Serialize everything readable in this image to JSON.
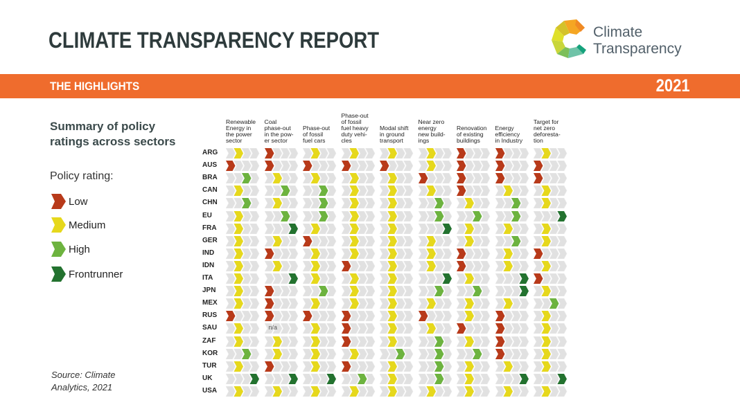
{
  "header": {
    "title": "CLIMATE TRANSPARENCY REPORT",
    "logo_text_line1": "Climate",
    "logo_text_line2": "Transparency",
    "band_label": "THE HIGHLIGHTS",
    "year": "2021"
  },
  "side": {
    "summary_title_line1": "Summary of policy",
    "summary_title_line2": "ratings across sectors",
    "legend_title": "Policy rating:",
    "legend": [
      {
        "label": "Low",
        "level": 1,
        "color": "#b83a1a"
      },
      {
        "label": "Medium",
        "level": 2,
        "color": "#e6d81c"
      },
      {
        "label": "High",
        "level": 3,
        "color": "#6db33f"
      },
      {
        "label": "Frontrunner",
        "level": 4,
        "color": "#23722f"
      }
    ],
    "source_line1": "Source: Climate",
    "source_line2": "Analytics, 2021"
  },
  "chart_data": {
    "type": "table",
    "title": "Summary of policy ratings across sectors",
    "rating_scale": [
      "Low",
      "Medium",
      "High",
      "Frontrunner"
    ],
    "colors": {
      "Low": "#b83a1a",
      "Medium": "#e6d81c",
      "High": "#6db33f",
      "Frontrunner": "#23722f",
      "track": "#e1e1e1"
    },
    "columns": [
      [
        "Renewable",
        "Energy in",
        "the power",
        "sector"
      ],
      [
        "Coal",
        "phase-out",
        "in the pow-",
        "er sector"
      ],
      [
        "Phase-out",
        "of fossil",
        "fuel cars"
      ],
      [
        "Phase-out",
        "of fossil",
        "fuel heavy",
        "duty vehi-",
        "cles"
      ],
      [
        "Modal shift",
        "in ground",
        "transport"
      ],
      [
        "Near zero",
        "energy",
        "new build-",
        "ings"
      ],
      [
        "Renovation",
        "of existing",
        "buildings"
      ],
      [
        "Energy",
        "efficiency",
        "in Industry"
      ],
      [
        "Target for",
        "net zero",
        "deforesta-",
        "tion"
      ]
    ],
    "rows": [
      {
        "country": "ARG",
        "ratings": [
          "Medium",
          "Low",
          "Medium",
          "Medium",
          "Medium",
          "Medium",
          "Low",
          "Low",
          "Medium"
        ]
      },
      {
        "country": "AUS",
        "ratings": [
          "Low",
          "Low",
          "Low",
          "Low",
          "Low",
          "Medium",
          "Low",
          "Low",
          "Low"
        ]
      },
      {
        "country": "BRA",
        "ratings": [
          "High",
          "Medium",
          "Medium",
          "Medium",
          "Medium",
          "Low",
          "Low",
          "Low",
          "Low"
        ]
      },
      {
        "country": "CAN",
        "ratings": [
          "Medium",
          "High",
          "High",
          "Medium",
          "Medium",
          "Medium",
          "Low",
          "Medium",
          "Medium"
        ]
      },
      {
        "country": "CHN",
        "ratings": [
          "High",
          "Medium",
          "High",
          "Medium",
          "Medium",
          "High",
          "Medium",
          "High",
          "Medium"
        ]
      },
      {
        "country": "EU",
        "ratings": [
          "Medium",
          "High",
          "High",
          "Medium",
          "Medium",
          "High",
          "High",
          "High",
          "Frontrunner"
        ]
      },
      {
        "country": "FRA",
        "ratings": [
          "Medium",
          "Frontrunner",
          "Medium",
          "Medium",
          "Medium",
          "Frontrunner",
          "Medium",
          "Medium",
          "Medium"
        ]
      },
      {
        "country": "GER",
        "ratings": [
          "Medium",
          "Medium",
          "Low",
          "Medium",
          "Medium",
          "Medium",
          "Medium",
          "High",
          "Medium"
        ]
      },
      {
        "country": "IND",
        "ratings": [
          "Medium",
          "Low",
          "Medium",
          "Medium",
          "Medium",
          "Medium",
          "Low",
          "Medium",
          "Low"
        ]
      },
      {
        "country": "IDN",
        "ratings": [
          "Medium",
          "Medium",
          "Medium",
          "Low",
          "Medium",
          "Medium",
          "Low",
          "Medium",
          "Medium"
        ]
      },
      {
        "country": "ITA",
        "ratings": [
          "Medium",
          "Frontrunner",
          "Medium",
          "Medium",
          "Medium",
          "Frontrunner",
          "Medium",
          "Frontrunner",
          "Low"
        ]
      },
      {
        "country": "JPN",
        "ratings": [
          "Medium",
          "Low",
          "High",
          "Medium",
          "Medium",
          "High",
          "High",
          "Frontrunner",
          "Medium"
        ]
      },
      {
        "country": "MEX",
        "ratings": [
          "Medium",
          "Low",
          "Medium",
          "Medium",
          "Medium",
          "Medium",
          "Medium",
          "Medium",
          "High"
        ]
      },
      {
        "country": "RUS",
        "ratings": [
          "Low",
          "Low",
          "Low",
          "Low",
          "Medium",
          "Low",
          "Medium",
          "Low",
          "Medium"
        ]
      },
      {
        "country": "SAU",
        "ratings": [
          "Medium",
          "n/a",
          "Medium",
          "Low",
          "Medium",
          "Medium",
          "Low",
          "Low",
          "Medium"
        ]
      },
      {
        "country": "ZAF",
        "ratings": [
          "Medium",
          "Medium",
          "Medium",
          "Low",
          "Medium",
          "High",
          "Medium",
          "Low",
          "Medium"
        ]
      },
      {
        "country": "KOR",
        "ratings": [
          "High",
          "Medium",
          "Medium",
          "Medium",
          "High",
          "High",
          "High",
          "Low",
          "Medium"
        ]
      },
      {
        "country": "TUR",
        "ratings": [
          "Medium",
          "Low",
          "Medium",
          "Low",
          "Medium",
          "High",
          "Medium",
          "Medium",
          "Medium"
        ]
      },
      {
        "country": "UK",
        "ratings": [
          "Frontrunner",
          "Frontrunner",
          "Frontrunner",
          "High",
          "Medium",
          "High",
          "Medium",
          "Frontrunner",
          "Frontrunner"
        ]
      },
      {
        "country": "USA",
        "ratings": [
          "Medium",
          "Medium",
          "Medium",
          "Medium",
          "Medium",
          "Medium",
          "Medium",
          "Medium",
          "Medium"
        ]
      }
    ]
  }
}
